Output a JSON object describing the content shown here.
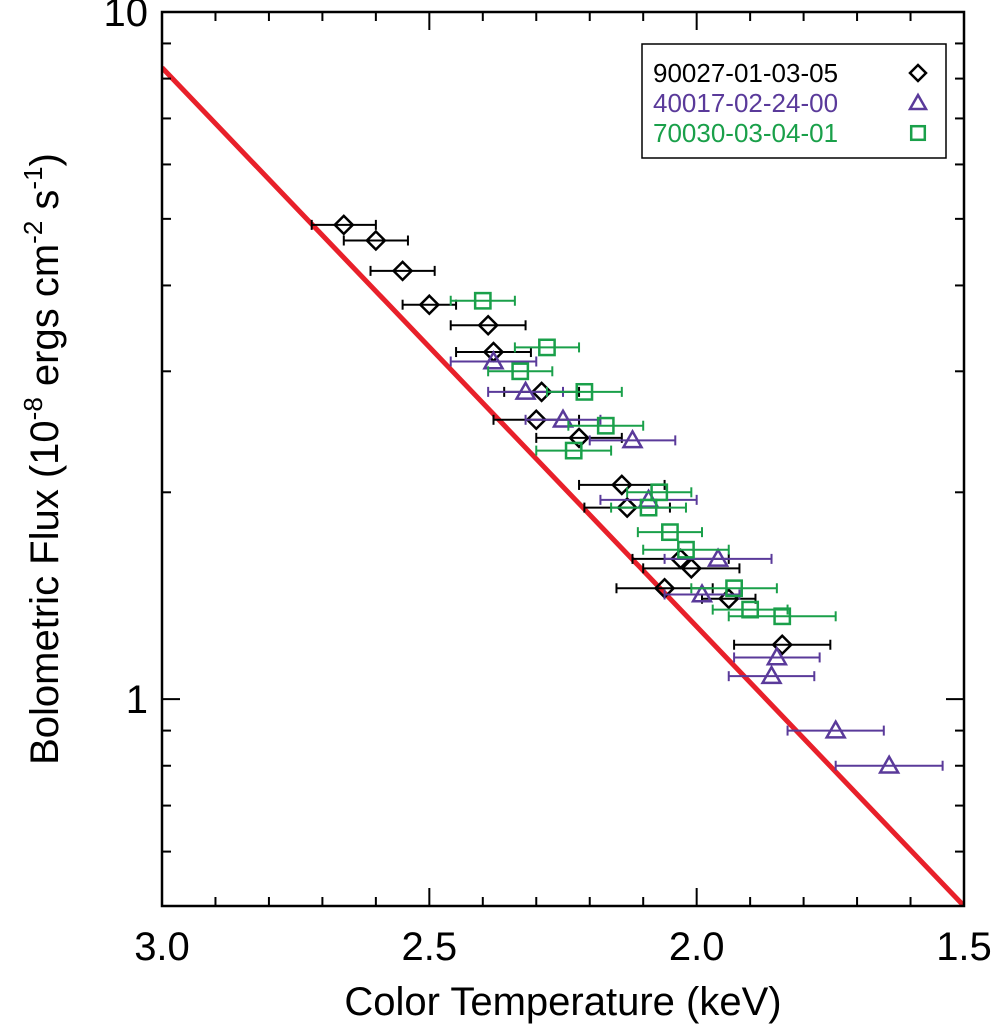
{
  "chart_data": {
    "type": "scatter",
    "title": "",
    "xlabel": "Color Temperature (keV)",
    "ylabel_parts": {
      "pre": "Bolometric Flux (10",
      "exp1": "-8",
      "mid1": " ergs cm",
      "exp2": "-2",
      "mid2": " s",
      "exp3": "-1",
      "post": ")"
    },
    "xlim": [
      3.0,
      1.5
    ],
    "ylim": [
      0.5,
      10
    ],
    "yscale": "log",
    "x_ticks": [
      "3.0",
      "2.5",
      "2.0",
      "1.5"
    ],
    "y_ticks": [
      "1",
      "10"
    ],
    "legend_position": "top-right",
    "fit_line": {
      "color": "#e8202a",
      "points": [
        [
          3.0,
          8.3
        ],
        [
          1.5,
          0.5
        ]
      ]
    },
    "series": [
      {
        "name": "90027-01-03-05",
        "marker": "diamond",
        "color": "#000000",
        "points": [
          {
            "x": 2.66,
            "y": 4.9,
            "xerr": 0.06
          },
          {
            "x": 2.6,
            "y": 4.65,
            "xerr": 0.06
          },
          {
            "x": 2.55,
            "y": 4.2,
            "xerr": 0.06
          },
          {
            "x": 2.5,
            "y": 3.75,
            "xerr": 0.05
          },
          {
            "x": 2.39,
            "y": 3.5,
            "xerr": 0.07
          },
          {
            "x": 2.38,
            "y": 3.2,
            "xerr": 0.07
          },
          {
            "x": 2.29,
            "y": 2.8,
            "xerr": 0.07
          },
          {
            "x": 2.3,
            "y": 2.55,
            "xerr": 0.08
          },
          {
            "x": 2.22,
            "y": 2.4,
            "xerr": 0.08
          },
          {
            "x": 2.14,
            "y": 2.05,
            "xerr": 0.08
          },
          {
            "x": 2.13,
            "y": 1.9,
            "xerr": 0.08
          },
          {
            "x": 2.03,
            "y": 1.6,
            "xerr": 0.09
          },
          {
            "x": 2.01,
            "y": 1.55,
            "xerr": 0.09
          },
          {
            "x": 2.06,
            "y": 1.45,
            "xerr": 0.09
          },
          {
            "x": 1.94,
            "y": 1.4,
            "xerr": 0.05
          },
          {
            "x": 1.84,
            "y": 1.2,
            "xerr": 0.09
          }
        ]
      },
      {
        "name": "40017-02-24-00",
        "marker": "triangle",
        "color": "#5a3a9a",
        "points": [
          {
            "x": 2.38,
            "y": 3.1,
            "xerr": 0.08
          },
          {
            "x": 2.32,
            "y": 2.8,
            "xerr": 0.07
          },
          {
            "x": 2.25,
            "y": 2.55,
            "xerr": 0.07
          },
          {
            "x": 2.12,
            "y": 2.38,
            "xerr": 0.08
          },
          {
            "x": 2.09,
            "y": 1.95,
            "xerr": 0.09
          },
          {
            "x": 1.96,
            "y": 1.6,
            "xerr": 0.1
          },
          {
            "x": 1.99,
            "y": 1.42,
            "xerr": 0.07
          },
          {
            "x": 1.85,
            "y": 1.15,
            "xerr": 0.08
          },
          {
            "x": 1.86,
            "y": 1.08,
            "xerr": 0.08
          },
          {
            "x": 1.74,
            "y": 0.9,
            "xerr": 0.09
          },
          {
            "x": 1.64,
            "y": 0.8,
            "xerr": 0.1
          }
        ]
      },
      {
        "name": "70030-03-04-01",
        "marker": "square",
        "color": "#1aa04a",
        "points": [
          {
            "x": 2.4,
            "y": 3.8,
            "xerr": 0.06
          },
          {
            "x": 2.28,
            "y": 3.25,
            "xerr": 0.06
          },
          {
            "x": 2.33,
            "y": 3.0,
            "xerr": 0.06
          },
          {
            "x": 2.21,
            "y": 2.8,
            "xerr": 0.07
          },
          {
            "x": 2.17,
            "y": 2.5,
            "xerr": 0.07
          },
          {
            "x": 2.23,
            "y": 2.3,
            "xerr": 0.07
          },
          {
            "x": 2.07,
            "y": 2.0,
            "xerr": 0.06
          },
          {
            "x": 2.09,
            "y": 1.9,
            "xerr": 0.07
          },
          {
            "x": 2.05,
            "y": 1.75,
            "xerr": 0.06
          },
          {
            "x": 2.02,
            "y": 1.65,
            "xerr": 0.08
          },
          {
            "x": 1.93,
            "y": 1.45,
            "xerr": 0.08
          },
          {
            "x": 1.9,
            "y": 1.35,
            "xerr": 0.07
          },
          {
            "x": 1.84,
            "y": 1.32,
            "xerr": 0.1
          }
        ]
      }
    ]
  }
}
